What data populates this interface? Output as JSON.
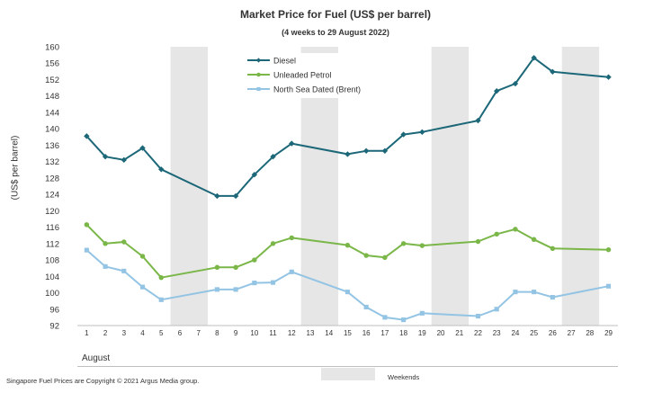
{
  "chart_data": {
    "type": "line",
    "title": "Market Price for Fuel (US$ per barrel)",
    "subtitle": "(4 weeks to 29 August 2022)",
    "ylabel": "(US$ per barrel)",
    "xlabel": "August",
    "ylim": [
      92,
      160
    ],
    "ytick_step": 4,
    "x": [
      1,
      2,
      3,
      4,
      5,
      6,
      7,
      8,
      9,
      10,
      11,
      12,
      13,
      14,
      15,
      16,
      17,
      18,
      19,
      20,
      21,
      22,
      23,
      24,
      25,
      26,
      27,
      28,
      29
    ],
    "x_labels": [
      "1",
      "2",
      "3",
      "4",
      "5",
      "6",
      "7",
      "8",
      "9",
      "10",
      "11",
      "12",
      "13",
      "14",
      "15",
      "16",
      "17",
      "18",
      "19",
      "20",
      "21",
      "22",
      "23",
      "24",
      "25",
      "26",
      "27",
      "28",
      "29"
    ],
    "weekends": [
      [
        6,
        7
      ],
      [
        13,
        14
      ],
      [
        20,
        21
      ],
      [
        27,
        28
      ]
    ],
    "weekend_label": "Weekends",
    "series": [
      {
        "name": "Diesel",
        "color": "#1c6778",
        "marker": "diamond",
        "points": [
          [
            1,
            138.2
          ],
          [
            2,
            133.2
          ],
          [
            3,
            132.4
          ],
          [
            4,
            135.3
          ],
          [
            5,
            130.1
          ],
          [
            8,
            123.6
          ],
          [
            9,
            123.6
          ],
          [
            10,
            128.8
          ],
          [
            11,
            133.2
          ],
          [
            12,
            136.4
          ],
          [
            15,
            133.8
          ],
          [
            16,
            134.6
          ],
          [
            17,
            134.6
          ],
          [
            18,
            138.6
          ],
          [
            19,
            139.2
          ],
          [
            22,
            142.0
          ],
          [
            23,
            149.2
          ],
          [
            24,
            151.0
          ],
          [
            25,
            157.3
          ],
          [
            26,
            153.9
          ],
          [
            29,
            152.6
          ]
        ]
      },
      {
        "name": "Unleaded Petrol",
        "color": "#7ab648",
        "marker": "circle",
        "points": [
          [
            1,
            116.6
          ],
          [
            2,
            112.0
          ],
          [
            3,
            112.4
          ],
          [
            4,
            108.9
          ],
          [
            5,
            103.7
          ],
          [
            8,
            106.2
          ],
          [
            9,
            106.2
          ],
          [
            10,
            108.0
          ],
          [
            11,
            112.0
          ],
          [
            12,
            113.4
          ],
          [
            15,
            111.6
          ],
          [
            16,
            109.1
          ],
          [
            17,
            108.6
          ],
          [
            18,
            112.0
          ],
          [
            19,
            111.5
          ],
          [
            22,
            112.5
          ],
          [
            23,
            114.3
          ],
          [
            24,
            115.5
          ],
          [
            25,
            113.0
          ],
          [
            26,
            110.8
          ],
          [
            29,
            110.5
          ]
        ]
      },
      {
        "name": "North Sea Dated (Brent)",
        "color": "#93c4e4",
        "marker": "square",
        "points": [
          [
            1,
            110.4
          ],
          [
            2,
            106.4
          ],
          [
            3,
            105.3
          ],
          [
            4,
            101.4
          ],
          [
            5,
            98.3
          ],
          [
            8,
            100.8
          ],
          [
            9,
            100.8
          ],
          [
            10,
            102.4
          ],
          [
            11,
            102.5
          ],
          [
            12,
            105.1
          ],
          [
            15,
            100.2
          ],
          [
            16,
            96.5
          ],
          [
            17,
            94.0
          ],
          [
            18,
            93.4
          ],
          [
            19,
            95.0
          ],
          [
            22,
            94.3
          ],
          [
            23,
            96.0
          ],
          [
            24,
            100.2
          ],
          [
            25,
            100.2
          ],
          [
            26,
            98.9
          ],
          [
            29,
            101.6
          ]
        ]
      }
    ],
    "gridlines": false,
    "legend_position": "top-center"
  },
  "footer": {
    "copyright": "Singapore  Fuel Prices  are Copyright  © 2021  Argus  Media group."
  }
}
